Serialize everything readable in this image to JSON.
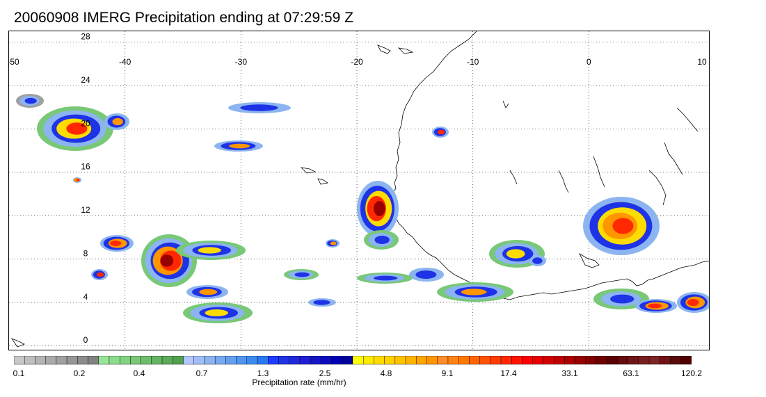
{
  "title": "20060908 IMERG Precipitation ending at 07:29:59 Z",
  "map": {
    "lon_labels": [
      "-50",
      "-40",
      "-30",
      "-20",
      "-10",
      "0",
      "10"
    ],
    "lat_labels": [
      "28",
      "24",
      "20",
      "16",
      "12",
      "8",
      "4",
      "0"
    ],
    "lon_range": [
      -50,
      10
    ],
    "lat_range": [
      -0.5,
      29
    ],
    "grid": true,
    "grid_style": "dotted"
  },
  "colorbar": {
    "title": "Precipitation rate (mm/hr)",
    "tick_labels": [
      "0.1",
      "0.2",
      "0.4",
      "0.7",
      "1.3",
      "2.5",
      "4.8",
      "9.1",
      "17.4",
      "33.1",
      "63.1",
      "120.2"
    ],
    "colors": [
      "#c8c8c8",
      "#bebebe",
      "#b4b4b4",
      "#aaaaaa",
      "#a0a0a0",
      "#969696",
      "#8c8c8c",
      "#828282",
      "#96e696",
      "#8cdc8c",
      "#82d282",
      "#78c878",
      "#6ebe6e",
      "#64b464",
      "#5aaa5a",
      "#50a050",
      "#b4c8ff",
      "#a0bef8",
      "#8cb4f0",
      "#78aaf0",
      "#649ff0",
      "#5096f0",
      "#3c8cf0",
      "#2878f0",
      "#1e3cff",
      "#1e32e6",
      "#1e28dc",
      "#1e1ed2",
      "#1414c8",
      "#0a0abe",
      "#0000b4",
      "#00009f",
      "#ffff00",
      "#ffeb00",
      "#ffdc00",
      "#ffd200",
      "#ffc300",
      "#ffb400",
      "#ffa500",
      "#ff9600",
      "#ff8c28",
      "#ff8214",
      "#ff7800",
      "#ff6400",
      "#ff5000",
      "#ff3c00",
      "#ff2800",
      "#ff1400",
      "#ff0000",
      "#e60000",
      "#d20000",
      "#be0000",
      "#aa0000",
      "#960000",
      "#820000",
      "#6e0000",
      "#5a0000",
      "#640a0a",
      "#6e1414",
      "#781e1e",
      "#7d2323",
      "#6e1414",
      "#5a0a0a",
      "#500000"
    ]
  },
  "features": {
    "coastline_color": "#000000",
    "precip_colors": {
      "light_gray": "#a0a0a0",
      "green": "#78c878",
      "light_blue": "#8cb4f0",
      "blue": "#1e32e6",
      "dark_blue": "#00009f",
      "yellow": "#ffdc00",
      "orange": "#ff9600",
      "red": "#ff2800",
      "dark_red": "#960000"
    }
  }
}
